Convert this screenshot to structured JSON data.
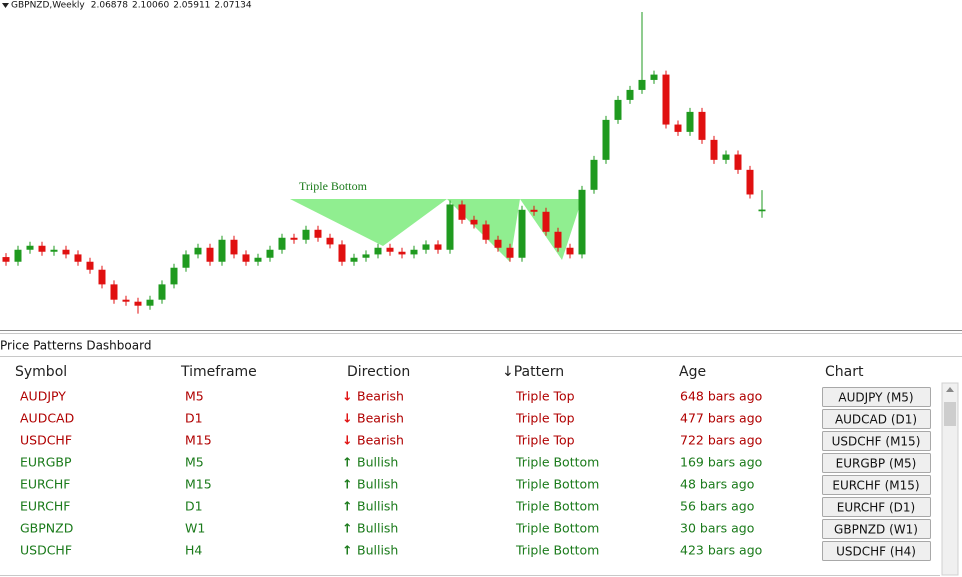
{
  "chart_data": {
    "type": "candlestick",
    "title": "GBPNZD,Weekly",
    "ohlc_labels": [
      "2.06878",
      "2.10060",
      "2.05911",
      "2.07134"
    ],
    "annotation": "Triple Bottom",
    "up_color": "#1f9a1f",
    "down_color": "#e01010",
    "ylim": [
      1.886,
      2.386
    ],
    "open": [
      2.0,
      1.993,
      2.011,
      2.017,
      2.008,
      2.011,
      2.004,
      1.993,
      1.981,
      1.959,
      1.936,
      1.933,
      1.927,
      1.936,
      1.959,
      1.984,
      2.004,
      2.014,
      1.993,
      2.026,
      2.004,
      1.993,
      1.999,
      2.011,
      2.029,
      2.026,
      2.041,
      2.029,
      2.019,
      1.993,
      1.999,
      2.004,
      2.014,
      2.008,
      2.004,
      2.011,
      2.019,
      2.011,
      2.079,
      2.056,
      2.049,
      2.026,
      2.014,
      1.999,
      2.071,
      2.068,
      2.038,
      2.014,
      2.004,
      2.101,
      2.146,
      2.206,
      2.236,
      2.251,
      2.266,
      2.274,
      2.199,
      2.188,
      2.218,
      2.176,
      2.146,
      2.154,
      2.131,
      2.06878
    ],
    "high": [
      2.006,
      2.017,
      2.023,
      2.023,
      2.017,
      2.017,
      2.01,
      1.999,
      1.987,
      1.965,
      1.942,
      1.939,
      1.942,
      1.965,
      1.99,
      2.01,
      2.02,
      2.02,
      2.032,
      2.032,
      2.01,
      2.005,
      2.017,
      2.035,
      2.035,
      2.047,
      2.047,
      2.035,
      2.025,
      2.005,
      2.01,
      2.02,
      2.02,
      2.014,
      2.017,
      2.025,
      2.025,
      2.085,
      2.085,
      2.062,
      2.055,
      2.032,
      2.02,
      2.077,
      2.077,
      2.074,
      2.044,
      2.02,
      2.107,
      2.152,
      2.212,
      2.242,
      2.257,
      2.368,
      2.28,
      2.28,
      2.205,
      2.224,
      2.224,
      2.182,
      2.16,
      2.16,
      2.137,
      2.1006
    ],
    "low": [
      1.987,
      1.987,
      2.005,
      2.002,
      2.002,
      1.998,
      1.987,
      1.975,
      1.953,
      1.93,
      1.927,
      1.915,
      1.921,
      1.93,
      1.953,
      1.978,
      1.998,
      1.987,
      1.987,
      1.998,
      1.987,
      1.987,
      1.993,
      2.005,
      2.02,
      2.02,
      2.023,
      2.013,
      1.987,
      1.987,
      1.993,
      1.998,
      2.002,
      1.998,
      1.998,
      2.005,
      2.005,
      2.005,
      2.05,
      2.043,
      2.02,
      2.008,
      1.993,
      1.993,
      2.062,
      2.032,
      2.008,
      1.998,
      1.998,
      2.095,
      2.14,
      2.2,
      2.23,
      2.245,
      2.26,
      2.193,
      2.182,
      2.182,
      2.17,
      2.14,
      2.14,
      2.125,
      2.088,
      2.05911
    ],
    "close": [
      1.993,
      2.011,
      2.017,
      2.008,
      2.011,
      2.004,
      1.993,
      1.981,
      1.959,
      1.936,
      1.933,
      1.927,
      1.936,
      1.959,
      1.984,
      2.004,
      2.014,
      1.993,
      2.026,
      2.004,
      1.993,
      1.999,
      2.011,
      2.029,
      2.026,
      2.041,
      2.029,
      2.019,
      1.993,
      1.999,
      2.004,
      2.014,
      2.008,
      2.004,
      2.011,
      2.019,
      2.011,
      2.079,
      2.056,
      2.049,
      2.026,
      2.014,
      1.999,
      2.071,
      2.068,
      2.038,
      2.014,
      2.004,
      2.101,
      2.146,
      2.206,
      2.236,
      2.251,
      2.266,
      2.274,
      2.199,
      2.188,
      2.218,
      2.176,
      2.146,
      2.154,
      2.131,
      2.094,
      2.07134
    ]
  },
  "dashboard": {
    "title": "Price Patterns Dashboard",
    "columns": [
      "Symbol",
      "Timeframe",
      "Direction",
      "↓Pattern",
      "Age",
      "Chart"
    ],
    "rows": [
      {
        "symbol": "AUDJPY",
        "timeframe": "M5",
        "arrow": "↓",
        "direction": "Bearish",
        "pattern": "Triple Top",
        "age": "648 bars ago",
        "chart": "AUDJPY (M5)",
        "color": "#b00000",
        "arrow_color": "#e01010"
      },
      {
        "symbol": "AUDCAD",
        "timeframe": "D1",
        "arrow": "↓",
        "direction": "Bearish",
        "pattern": "Triple Top",
        "age": "477 bars ago",
        "chart": "AUDCAD (D1)",
        "color": "#b00000",
        "arrow_color": "#e01010"
      },
      {
        "symbol": "USDCHF",
        "timeframe": "M15",
        "arrow": "↓",
        "direction": "Bearish",
        "pattern": "Triple Top",
        "age": "722 bars ago",
        "chart": "USDCHF (M15)",
        "color": "#b00000",
        "arrow_color": "#e01010"
      },
      {
        "symbol": "EURGBP",
        "timeframe": "M5",
        "arrow": "↑",
        "direction": "Bullish",
        "pattern": "Triple Bottom",
        "age": "169 bars ago",
        "chart": "EURGBP (M5)",
        "color": "#1a7a1a",
        "arrow_color": "#1a7a1a"
      },
      {
        "symbol": "EURCHF",
        "timeframe": "M15",
        "arrow": "↑",
        "direction": "Bullish",
        "pattern": "Triple Bottom",
        "age": "48 bars ago",
        "chart": "EURCHF (M15)",
        "color": "#1a7a1a",
        "arrow_color": "#1a7a1a"
      },
      {
        "symbol": "EURCHF",
        "timeframe": "D1",
        "arrow": "↑",
        "direction": "Bullish",
        "pattern": "Triple Bottom",
        "age": "56 bars ago",
        "chart": "EURCHF (D1)",
        "color": "#1a7a1a",
        "arrow_color": "#1a7a1a"
      },
      {
        "symbol": "GBPNZD",
        "timeframe": "W1",
        "arrow": "↑",
        "direction": "Bullish",
        "pattern": "Triple Bottom",
        "age": "30 bars ago",
        "chart": "GBPNZD (W1)",
        "color": "#1a7a1a",
        "arrow_color": "#1a7a1a"
      },
      {
        "symbol": "USDCHF",
        "timeframe": "H4",
        "arrow": "↑",
        "direction": "Bullish",
        "pattern": "Triple Bottom",
        "age": "423 bars ago",
        "chart": "USDCHF (H4)",
        "color": "#1a7a1a",
        "arrow_color": "#1a7a1a"
      }
    ]
  }
}
